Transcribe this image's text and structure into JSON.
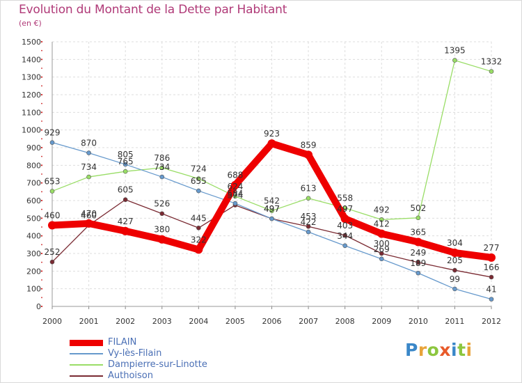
{
  "title": "Evolution du Montant de la Dette par Habitant",
  "subtitle": "(en €)",
  "logo": {
    "text": "Proxiti",
    "letters": [
      {
        "ch": "P",
        "color": "#3a87c8"
      },
      {
        "ch": "r",
        "color": "#e8a33a"
      },
      {
        "ch": "o",
        "color": "#8cc63f"
      },
      {
        "ch": "x",
        "color": "#e85a2a"
      },
      {
        "ch": "i",
        "color": "#3a87c8"
      },
      {
        "ch": "t",
        "color": "#8cc63f"
      },
      {
        "ch": "i",
        "color": "#e8a33a"
      }
    ]
  },
  "chart_data": {
    "type": "line",
    "title": "Evolution du Montant de la Dette par Habitant",
    "subtitle": "(en €)",
    "categories": [
      "2000",
      "2001",
      "2002",
      "2003",
      "2004",
      "2005",
      "2006",
      "2007",
      "2008",
      "2009",
      "2010",
      "2011",
      "2012"
    ],
    "ylim": [
      0,
      1500
    ],
    "yticks": [
      0,
      100,
      200,
      300,
      400,
      500,
      600,
      700,
      800,
      900,
      1000,
      1100,
      1200,
      1300,
      1400,
      1500
    ],
    "grid": true,
    "legend": "bottom-left",
    "series": [
      {
        "name": "FILAIN",
        "color": "#ee0000",
        "values": [
          460,
          470,
          427,
          380,
          322,
          688,
          923,
          859,
          497,
          412,
          365,
          304,
          277
        ]
      },
      {
        "name": "Vy-lès-Filain",
        "color": "#6699cc",
        "values": [
          929,
          870,
          805,
          734,
          655,
          584,
          497,
          422,
          344,
          269,
          189,
          99,
          41
        ]
      },
      {
        "name": "Dampierre-sur-Linotte",
        "color": "#99dd66",
        "values": [
          653,
          734,
          765,
          786,
          724,
          624,
          542,
          613,
          558,
          492,
          502,
          1395,
          1332
        ]
      },
      {
        "name": "Authoison",
        "color": "#7a2a32",
        "values": [
          252,
          460,
          605,
          526,
          445,
          574,
          497,
          453,
          403,
          300,
          249,
          205,
          166
        ]
      }
    ]
  }
}
